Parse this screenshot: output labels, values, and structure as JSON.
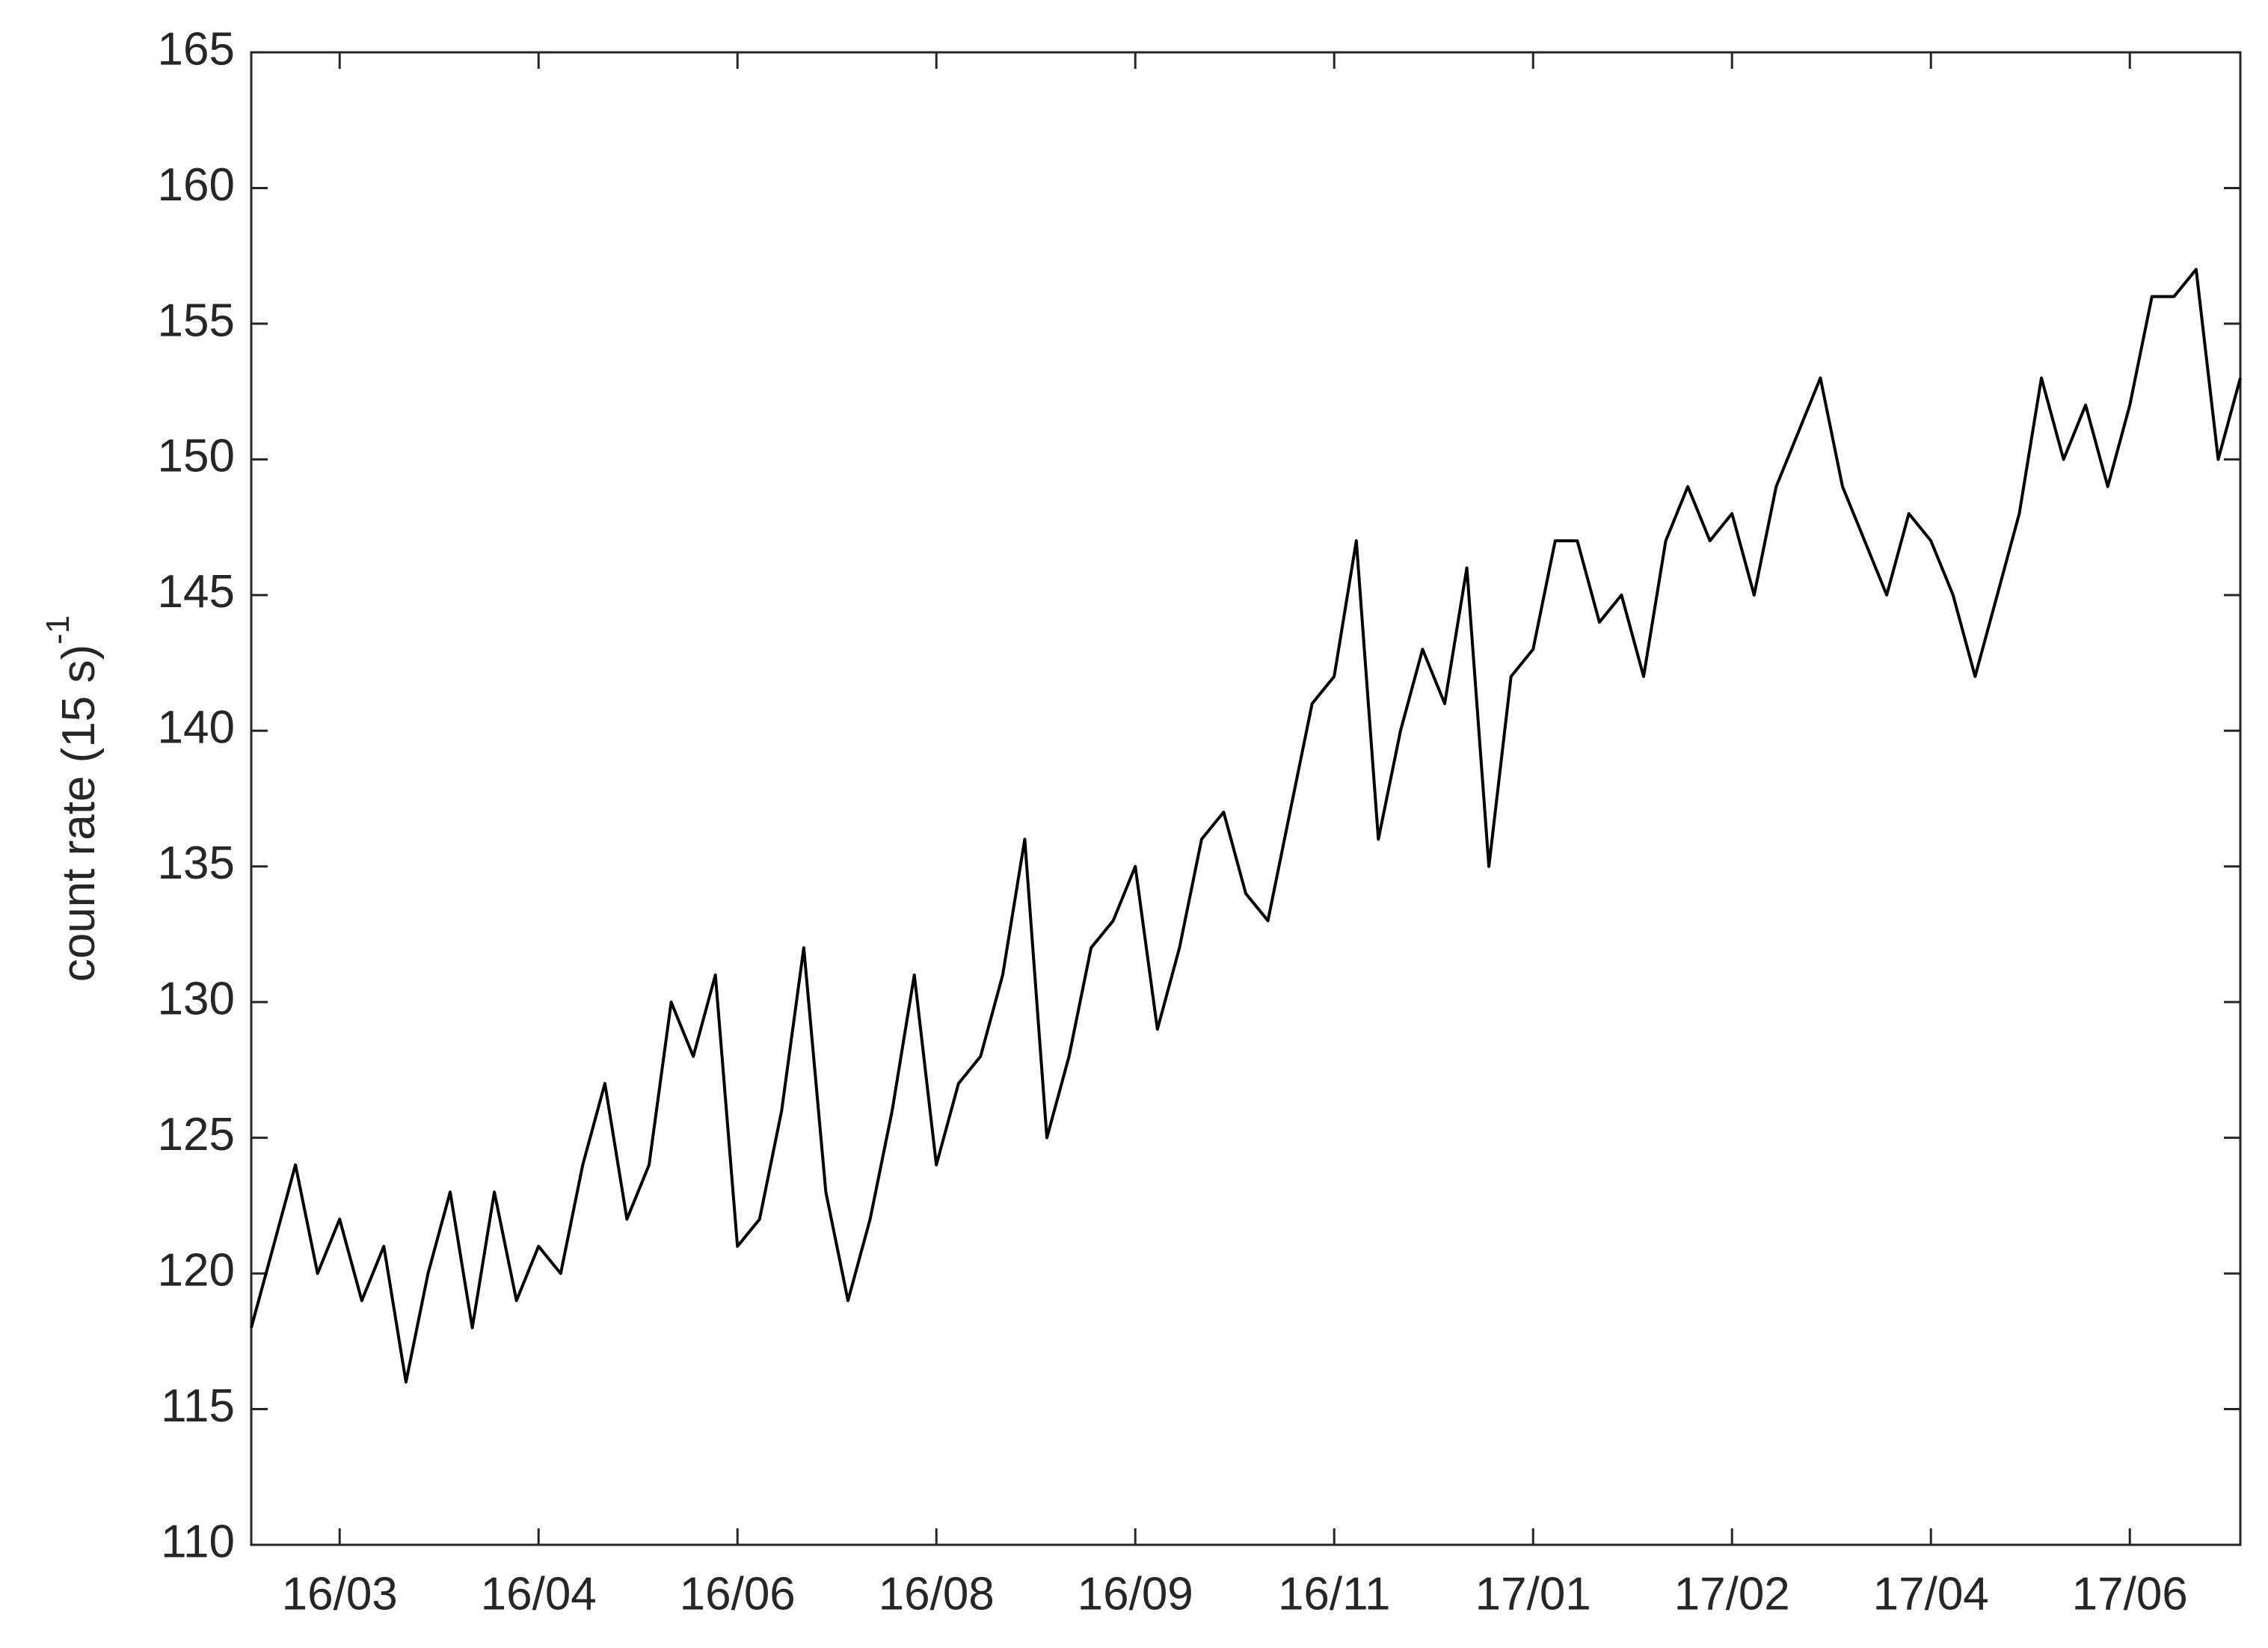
{
  "chart_data": {
    "type": "line",
    "ylabel": "count rate (15 s)",
    "ylabel_exponent": "-1",
    "categories": [
      null,
      null,
      null,
      null,
      "16/03",
      null,
      null,
      null,
      null,
      null,
      null,
      null,
      null,
      "16/04",
      null,
      null,
      null,
      null,
      null,
      null,
      null,
      null,
      "16/06",
      null,
      null,
      null,
      null,
      null,
      null,
      null,
      null,
      "16/08",
      null,
      null,
      null,
      null,
      null,
      null,
      null,
      null,
      "16/09",
      null,
      null,
      null,
      null,
      null,
      null,
      null,
      null,
      "16/11",
      null,
      null,
      null,
      null,
      null,
      null,
      null,
      null,
      "17/01",
      null,
      null,
      null,
      null,
      null,
      null,
      null,
      null,
      "17/02",
      null,
      null,
      null,
      null,
      null,
      null,
      null,
      null,
      "17/04",
      null,
      null,
      null,
      null,
      null,
      null,
      null,
      null,
      "17/06",
      null,
      null,
      null,
      null,
      null
    ],
    "values": [
      118,
      121,
      124,
      120,
      122,
      119,
      121,
      116,
      120,
      123,
      118,
      123,
      119,
      121,
      120,
      124,
      127,
      122,
      124,
      130,
      128,
      131,
      121,
      122,
      126,
      132,
      123,
      119,
      122,
      126,
      131,
      124,
      127,
      128,
      131,
      136,
      125,
      128,
      132,
      133,
      135,
      129,
      132,
      136,
      137,
      134,
      133,
      137,
      141,
      142,
      147,
      136,
      140,
      143,
      141,
      146,
      135,
      142,
      143,
      147,
      147,
      144,
      145,
      142,
      147,
      149,
      147,
      148,
      145,
      149,
      151,
      153,
      149,
      147,
      145,
      148,
      147,
      145,
      142,
      145,
      148,
      153,
      150,
      152,
      149,
      152,
      156,
      156,
      157,
      150,
      153
    ],
    "color": "#000000",
    "ylim": [
      110,
      165
    ],
    "yticks": [
      110,
      115,
      120,
      125,
      130,
      135,
      140,
      145,
      150,
      155,
      160,
      165
    ],
    "grid": false
  }
}
